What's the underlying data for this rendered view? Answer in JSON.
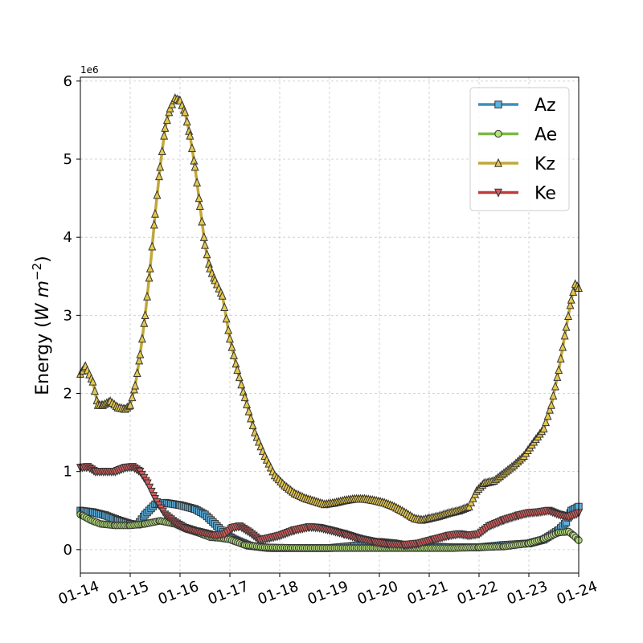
{
  "chart_data": {
    "type": "line",
    "title": "",
    "xlabel": "",
    "ylabel": "Energy (",
    "ylabel_unit": "W m",
    "ylabel_exp": "−2",
    "ylabel_close": ")",
    "y_offset_text": "1e6",
    "xlim": [
      "2023-01-14",
      "2023-01-24"
    ],
    "ylim": [
      -0.3,
      6.05
    ],
    "x_ticks": [
      "01-14",
      "01-15",
      "01-16",
      "01-17",
      "01-18",
      "01-19",
      "01-20",
      "01-21",
      "01-22",
      "01-23",
      "01-24"
    ],
    "y_ticks": [
      "0",
      "1",
      "2",
      "3",
      "4",
      "5",
      "6"
    ],
    "grid": true,
    "legend_position": "top-right",
    "x_unit": "days from 01-14",
    "series": [
      {
        "name": "Az",
        "color": "#3a8fc1",
        "marker_fill": "#5ab2e0",
        "marker": "square",
        "points": [
          [
            0,
            0.5
          ],
          [
            0.25,
            0.48
          ],
          [
            0.5,
            0.44
          ],
          [
            0.75,
            0.38
          ],
          [
            1,
            0.33
          ],
          [
            1.15,
            0.32
          ],
          [
            1.3,
            0.45
          ],
          [
            1.5,
            0.58
          ],
          [
            1.7,
            0.6
          ],
          [
            2,
            0.57
          ],
          [
            2.3,
            0.52
          ],
          [
            2.5,
            0.45
          ],
          [
            2.7,
            0.33
          ],
          [
            2.9,
            0.2
          ],
          [
            3.1,
            0.13
          ],
          [
            3.4,
            0.05
          ],
          [
            3.8,
            0.02
          ],
          [
            4.5,
            0.02
          ],
          [
            5,
            0.02
          ],
          [
            5.5,
            0.05
          ],
          [
            6,
            0.1
          ],
          [
            6.3,
            0.08
          ],
          [
            6.6,
            0.05
          ],
          [
            7,
            0.04
          ],
          [
            7.5,
            0.03
          ],
          [
            8,
            0.03
          ],
          [
            8.5,
            0.06
          ],
          [
            9,
            0.08
          ],
          [
            9.3,
            0.13
          ],
          [
            9.6,
            0.25
          ],
          [
            9.75,
            0.35
          ],
          [
            9.85,
            0.5
          ],
          [
            10,
            0.55
          ]
        ]
      },
      {
        "name": "Ae",
        "color": "#7cb842",
        "marker_fill": "#b5e07a",
        "marker": "circle",
        "points": [
          [
            0,
            0.45
          ],
          [
            0.2,
            0.38
          ],
          [
            0.4,
            0.33
          ],
          [
            0.7,
            0.31
          ],
          [
            1,
            0.31
          ],
          [
            1.3,
            0.33
          ],
          [
            1.6,
            0.37
          ],
          [
            1.9,
            0.33
          ],
          [
            2.1,
            0.27
          ],
          [
            2.4,
            0.21
          ],
          [
            2.6,
            0.16
          ],
          [
            2.8,
            0.15
          ],
          [
            3,
            0.13
          ],
          [
            3.3,
            0.06
          ],
          [
            3.7,
            0.03
          ],
          [
            4.5,
            0.02
          ],
          [
            5.5,
            0.02
          ],
          [
            6.5,
            0.02
          ],
          [
            7.5,
            0.02
          ],
          [
            8,
            0.03
          ],
          [
            8.5,
            0.04
          ],
          [
            9,
            0.08
          ],
          [
            9.3,
            0.14
          ],
          [
            9.6,
            0.22
          ],
          [
            9.8,
            0.23
          ],
          [
            9.9,
            0.18
          ],
          [
            10,
            0.12
          ]
        ]
      },
      {
        "name": "Kz",
        "color": "#c0a83a",
        "marker_fill": "#e6c84a",
        "marker": "triangle-up",
        "points": [
          [
            0,
            2.25
          ],
          [
            0.1,
            2.35
          ],
          [
            0.25,
            2.15
          ],
          [
            0.35,
            1.85
          ],
          [
            0.45,
            1.85
          ],
          [
            0.6,
            1.9
          ],
          [
            0.75,
            1.82
          ],
          [
            0.9,
            1.8
          ],
          [
            1,
            1.85
          ],
          [
            1.1,
            2.1
          ],
          [
            1.2,
            2.5
          ],
          [
            1.3,
            3.0
          ],
          [
            1.4,
            3.6
          ],
          [
            1.5,
            4.3
          ],
          [
            1.6,
            4.9
          ],
          [
            1.7,
            5.4
          ],
          [
            1.8,
            5.65
          ],
          [
            1.9,
            5.78
          ],
          [
            2,
            5.75
          ],
          [
            2.1,
            5.6
          ],
          [
            2.2,
            5.3
          ],
          [
            2.3,
            4.9
          ],
          [
            2.4,
            4.4
          ],
          [
            2.5,
            3.9
          ],
          [
            2.6,
            3.6
          ],
          [
            2.7,
            3.45
          ],
          [
            2.85,
            3.25
          ],
          [
            3,
            2.7
          ],
          [
            3.15,
            2.3
          ],
          [
            3.3,
            1.95
          ],
          [
            3.5,
            1.5
          ],
          [
            3.7,
            1.2
          ],
          [
            3.9,
            0.95
          ],
          [
            4.1,
            0.82
          ],
          [
            4.3,
            0.72
          ],
          [
            4.5,
            0.66
          ],
          [
            4.7,
            0.62
          ],
          [
            4.9,
            0.58
          ],
          [
            5.1,
            0.6
          ],
          [
            5.3,
            0.63
          ],
          [
            5.5,
            0.65
          ],
          [
            5.7,
            0.65
          ],
          [
            5.9,
            0.63
          ],
          [
            6.1,
            0.6
          ],
          [
            6.3,
            0.55
          ],
          [
            6.5,
            0.48
          ],
          [
            6.7,
            0.4
          ],
          [
            6.85,
            0.38
          ],
          [
            7,
            0.4
          ],
          [
            7.2,
            0.43
          ],
          [
            7.4,
            0.47
          ],
          [
            7.6,
            0.5
          ],
          [
            7.8,
            0.55
          ],
          [
            7.95,
            0.75
          ],
          [
            8.1,
            0.85
          ],
          [
            8.3,
            0.88
          ],
          [
            8.5,
            0.98
          ],
          [
            8.7,
            1.08
          ],
          [
            8.9,
            1.2
          ],
          [
            9.1,
            1.38
          ],
          [
            9.3,
            1.55
          ],
          [
            9.45,
            1.85
          ],
          [
            9.6,
            2.3
          ],
          [
            9.75,
            2.85
          ],
          [
            9.85,
            3.2
          ],
          [
            9.93,
            3.4
          ],
          [
            10,
            3.35
          ]
        ]
      },
      {
        "name": "Ke",
        "color": "#c23b3b",
        "marker_fill": "#d65a5a",
        "marker": "triangle-down",
        "points": [
          [
            0,
            1.05
          ],
          [
            0.15,
            1.06
          ],
          [
            0.3,
            1.0
          ],
          [
            0.5,
            1.0
          ],
          [
            0.7,
            1.0
          ],
          [
            0.9,
            1.05
          ],
          [
            1.05,
            1.06
          ],
          [
            1.2,
            1.0
          ],
          [
            1.35,
            0.85
          ],
          [
            1.5,
            0.65
          ],
          [
            1.7,
            0.45
          ],
          [
            1.9,
            0.35
          ],
          [
            2.1,
            0.28
          ],
          [
            2.3,
            0.24
          ],
          [
            2.5,
            0.21
          ],
          [
            2.7,
            0.18
          ],
          [
            2.9,
            0.2
          ],
          [
            3.05,
            0.28
          ],
          [
            3.2,
            0.3
          ],
          [
            3.4,
            0.22
          ],
          [
            3.6,
            0.12
          ],
          [
            3.8,
            0.15
          ],
          [
            4,
            0.18
          ],
          [
            4.3,
            0.25
          ],
          [
            4.6,
            0.29
          ],
          [
            4.8,
            0.28
          ],
          [
            5,
            0.25
          ],
          [
            5.3,
            0.2
          ],
          [
            5.6,
            0.14
          ],
          [
            5.9,
            0.1
          ],
          [
            6.2,
            0.07
          ],
          [
            6.5,
            0.06
          ],
          [
            6.8,
            0.08
          ],
          [
            7.1,
            0.13
          ],
          [
            7.4,
            0.18
          ],
          [
            7.6,
            0.2
          ],
          [
            7.8,
            0.18
          ],
          [
            8,
            0.2
          ],
          [
            8.2,
            0.3
          ],
          [
            8.5,
            0.38
          ],
          [
            8.8,
            0.44
          ],
          [
            9,
            0.47
          ],
          [
            9.2,
            0.48
          ],
          [
            9.4,
            0.5
          ],
          [
            9.6,
            0.45
          ],
          [
            9.8,
            0.42
          ],
          [
            10,
            0.47
          ]
        ]
      }
    ]
  }
}
